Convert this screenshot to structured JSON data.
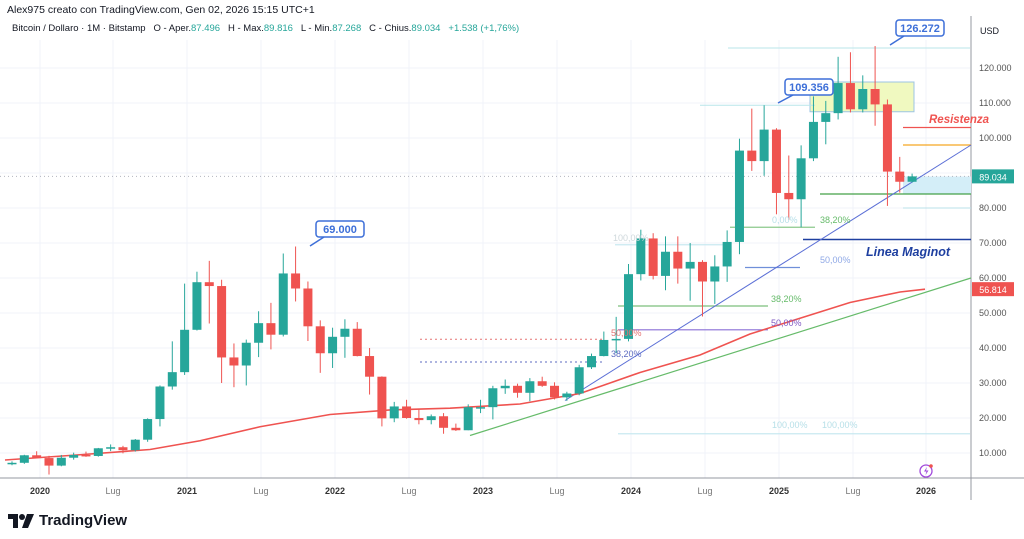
{
  "header": {
    "credit": "Alex975 creato con TradingView.com, Gen 02, 2026 15:15 UTC+1",
    "symbol": "Bitcoin / Dollaro · 1M · Bitstamp",
    "open_label": "O - Aper.",
    "open": "87.496",
    "high_label": "H - Max.",
    "high": "89.816",
    "low_label": "L - Min.",
    "low": "87.268",
    "close_label": "C - Chius.",
    "close": "89.034",
    "change": "+1.538 (+1,76%)"
  },
  "axis": {
    "currency": "USD",
    "y_ticks": [
      "120.000",
      "110.000",
      "100.000",
      "90.000",
      "80.000",
      "70.000",
      "60.000",
      "50.000",
      "40.000",
      "30.000",
      "20.000",
      "10.000"
    ],
    "x_ticks": [
      "2020",
      "Lug",
      "2021",
      "Lug",
      "2022",
      "Lug",
      "2023",
      "Lug",
      "2024",
      "Lug",
      "2025",
      "Lug",
      "2026"
    ],
    "last_price_label": "89.034",
    "ma_label": "56.814"
  },
  "annotations": {
    "callout_69000": "69.000",
    "callout_109356": "109.356",
    "callout_126272": "126.272",
    "resistenza": "Resistenza",
    "linea_maginot": "Linea Maginot",
    "fib_labels": [
      "100,00%",
      "0,00%",
      "38,20%",
      "50,00%",
      "38,20%",
      "50,00%",
      "50,00%",
      "38,20%",
      "100,00%",
      "100,00%"
    ]
  },
  "footer": {
    "brand": "TradingView"
  },
  "colors": {
    "up": "#26a69a",
    "down": "#ef5350",
    "ma": "#ef5350",
    "trend": "#5b6fd6",
    "support_green": "#4caf50",
    "maginot": "#1e3fa0"
  },
  "chart_data": {
    "type": "candlestick",
    "title": "Bitcoin / Dollaro · 1M · Bitstamp",
    "ylabel": "USD",
    "ylim": [
      0,
      130000
    ],
    "x_ticks": [
      "2020",
      "Lug",
      "2021",
      "Lug",
      "2022",
      "Lug",
      "2023",
      "Lug",
      "2024",
      "Lug",
      "2025",
      "Lug",
      "2026"
    ],
    "candles": [
      [
        "2019-12",
        7200,
        7600,
        6500,
        7200
      ],
      [
        "2020-01",
        7200,
        9500,
        6900,
        9350
      ],
      [
        "2020-02",
        9350,
        10500,
        8500,
        8550
      ],
      [
        "2020-03",
        8550,
        9200,
        3850,
        6400
      ],
      [
        "2020-04",
        6400,
        9450,
        6200,
        8650
      ],
      [
        "2020-05",
        8650,
        10100,
        8100,
        9450
      ],
      [
        "2020-06",
        9450,
        10400,
        8900,
        9150
      ],
      [
        "2020-07",
        9150,
        11450,
        8950,
        11350
      ],
      [
        "2020-08",
        11350,
        12450,
        10550,
        11650
      ],
      [
        "2020-09",
        11650,
        12050,
        9900,
        10800
      ],
      [
        "2020-10",
        10800,
        14000,
        10400,
        13800
      ],
      [
        "2020-11",
        13800,
        19900,
        13200,
        19700
      ],
      [
        "2020-12",
        19700,
        29300,
        17600,
        29000
      ],
      [
        "2021-01",
        29000,
        41900,
        28100,
        33100
      ],
      [
        "2021-02",
        33100,
        58400,
        32300,
        45200
      ],
      [
        "2021-03",
        45200,
        61800,
        45000,
        58800
      ],
      [
        "2021-04",
        58800,
        64900,
        47000,
        57700
      ],
      [
        "2021-05",
        57700,
        59500,
        30000,
        37300
      ],
      [
        "2021-06",
        37300,
        41300,
        28800,
        35000
      ],
      [
        "2021-07",
        35000,
        42400,
        29300,
        41500
      ],
      [
        "2021-08",
        41500,
        50500,
        37400,
        47100
      ],
      [
        "2021-09",
        47100,
        52900,
        39600,
        43800
      ],
      [
        "2021-10",
        43800,
        67000,
        43300,
        61300
      ],
      [
        "2021-11",
        61300,
        69000,
        53300,
        57000
      ],
      [
        "2021-12",
        57000,
        59000,
        42000,
        46200
      ],
      [
        "2022-01",
        46200,
        47900,
        32900,
        38500
      ],
      [
        "2022-02",
        38500,
        45800,
        34300,
        43200
      ],
      [
        "2022-03",
        43200,
        48200,
        37200,
        45500
      ],
      [
        "2022-04",
        45500,
        47400,
        37600,
        37700
      ],
      [
        "2022-05",
        37700,
        40000,
        26700,
        31800
      ],
      [
        "2022-06",
        31800,
        31900,
        17600,
        19900
      ],
      [
        "2022-07",
        19900,
        24600,
        18800,
        23300
      ],
      [
        "2022-08",
        23300,
        25200,
        19800,
        20000
      ],
      [
        "2022-09",
        20000,
        22700,
        18200,
        19400
      ],
      [
        "2022-10",
        19400,
        21000,
        18200,
        20500
      ],
      [
        "2022-11",
        20500,
        21400,
        15500,
        17200
      ],
      [
        "2022-12",
        17200,
        18400,
        16300,
        16500
      ],
      [
        "2023-01",
        16500,
        23900,
        16500,
        23100
      ],
      [
        "2023-02",
        23100,
        25200,
        21400,
        23100
      ],
      [
        "2023-03",
        23100,
        29200,
        19600,
        28500
      ],
      [
        "2023-04",
        28500,
        31000,
        26900,
        29200
      ],
      [
        "2023-05",
        29200,
        29800,
        25800,
        27200
      ],
      [
        "2023-06",
        27200,
        31400,
        24800,
        30500
      ],
      [
        "2023-07",
        30500,
        31800,
        28900,
        29200
      ],
      [
        "2023-08",
        29200,
        30200,
        25300,
        25900
      ],
      [
        "2023-09",
        25900,
        27500,
        24900,
        27000
      ],
      [
        "2023-10",
        27000,
        35200,
        26500,
        34500
      ],
      [
        "2023-11",
        34500,
        38400,
        34000,
        37700
      ],
      [
        "2023-12",
        37700,
        44700,
        37600,
        42300
      ],
      [
        "2024-01",
        42300,
        48900,
        38500,
        42600
      ],
      [
        "2024-02",
        42600,
        64000,
        41900,
        61100
      ],
      [
        "2024-03",
        61100,
        73800,
        59300,
        71300
      ],
      [
        "2024-04",
        71300,
        72800,
        59600,
        60600
      ],
      [
        "2024-05",
        60600,
        71900,
        56500,
        67500
      ],
      [
        "2024-06",
        67500,
        71900,
        58400,
        62700
      ],
      [
        "2024-07",
        62700,
        70000,
        53500,
        64600
      ],
      [
        "2024-08",
        64600,
        65100,
        49000,
        59000
      ],
      [
        "2024-09",
        59000,
        66500,
        52600,
        63300
      ],
      [
        "2024-10",
        63300,
        73600,
        58900,
        70300
      ],
      [
        "2024-11",
        70300,
        99800,
        66800,
        96400
      ],
      [
        "2024-12",
        96400,
        108400,
        90600,
        93400
      ],
      [
        "2025-01",
        93400,
        109356,
        89200,
        102400
      ],
      [
        "2025-02",
        102400,
        102800,
        78200,
        84300
      ],
      [
        "2025-03",
        84300,
        95000,
        76600,
        82500
      ],
      [
        "2025-04",
        82500,
        97900,
        74500,
        94200
      ],
      [
        "2025-05",
        94200,
        111900,
        93400,
        104600
      ],
      [
        "2025-06",
        104600,
        110600,
        98200,
        107100
      ],
      [
        "2025-07",
        107100,
        123200,
        105300,
        115700
      ],
      [
        "2025-08",
        115700,
        124500,
        107300,
        108200
      ],
      [
        "2025-09",
        108200,
        117900,
        107300,
        114000
      ],
      [
        "2025-10",
        114000,
        126272,
        103500,
        109600
      ],
      [
        "2025-11",
        109600,
        111000,
        80600,
        90400
      ],
      [
        "2025-12",
        90400,
        94600,
        84400,
        87500
      ],
      [
        "2026-01",
        87496,
        89816,
        87268,
        89034
      ]
    ],
    "overlays": {
      "moving_average_last": 56814,
      "resistance_lines": [
        103000,
        98000
      ],
      "support_green": 84000,
      "linea_maginot": 71000,
      "consolidation_box": [
        107500,
        116000
      ]
    }
  }
}
